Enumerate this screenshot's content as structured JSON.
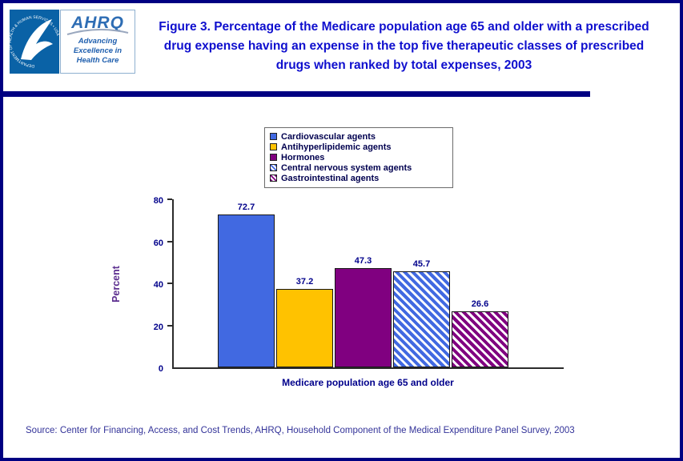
{
  "page": {
    "border_color": "#000082",
    "background": "#FFFFFF"
  },
  "header": {
    "title": "Figure 3. Percentage of the Medicare population age 65 and older with a prescribed drug expense having an expense in the top five therapeutic classes of prescribed drugs when ranked by total expenses, 2003",
    "hhs_logo": {
      "ring_text": "DEPARTMENT OF HEALTH & HUMAN SERVICES • USA"
    },
    "ahrq_logo": {
      "acronym": "AHRQ",
      "tagline": "Advancing Excellence in Health Care"
    }
  },
  "chart_data": {
    "type": "bar",
    "title": "Figure 3. Percentage of the Medicare population age 65 and older with a prescribed drug expense having an expense in the top five therapeutic classes of prescribed drugs when ranked by total expenses, 2003",
    "categories": [
      "Cardiovascular agents",
      "Antihyperlipidemic agents",
      "Hormones",
      "Central nervous system agents",
      "Gastrointestinal agents"
    ],
    "values": [
      72.7,
      37.2,
      47.3,
      45.7,
      26.6
    ],
    "value_labels": [
      "72.7",
      "37.2",
      "47.3",
      "45.7",
      "26.6"
    ],
    "xlabel": "Medicare population age 65 and older",
    "ylabel": "Percent",
    "ylim": [
      0,
      80
    ],
    "yticks": [
      0,
      20,
      40,
      60,
      80
    ],
    "grid": false,
    "legend_position": "top-center",
    "bar_styles": [
      {
        "color": "#4169E1",
        "pattern": "solid"
      },
      {
        "color": "#FFC200",
        "pattern": "solid"
      },
      {
        "color": "#800080",
        "pattern": "solid"
      },
      {
        "color": "#4169E1",
        "pattern": "diagonal"
      },
      {
        "color": "#800080",
        "pattern": "diagonal"
      }
    ],
    "bar_border_color": "#161616"
  },
  "footer": {
    "source": "Source: Center for Financing, Access, and Cost Trends, AHRQ, Household Component of the Medical Expenditure Panel Survey, 2003"
  }
}
